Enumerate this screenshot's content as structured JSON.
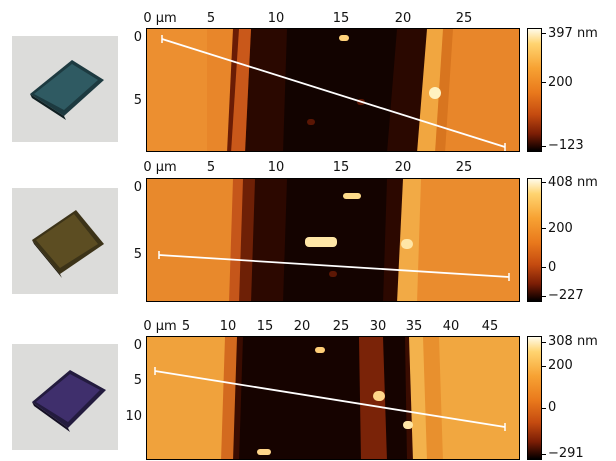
{
  "panels": [
    {
      "x_ticks": [
        "0 μm",
        "5",
        "10",
        "15",
        "20",
        "25"
      ],
      "y_ticks": [
        "0",
        "5"
      ],
      "colorbar": {
        "max": "397 nm",
        "mid": "200",
        "zero": "",
        "min": "−123"
      }
    },
    {
      "x_ticks": [
        "0 μm",
        "5",
        "10",
        "15",
        "20",
        "25"
      ],
      "y_ticks": [
        "0",
        "5"
      ],
      "colorbar": {
        "max": "408 nm",
        "mid": "200",
        "zero": "0",
        "min": "−227"
      }
    },
    {
      "x_ticks": [
        "0 μm",
        "5",
        "10",
        "15",
        "20",
        "25",
        "30",
        "35",
        "40",
        "45"
      ],
      "y_ticks": [
        "0",
        "5",
        "10"
      ],
      "colorbar": {
        "max": "308 nm",
        "mid": "200",
        "zero": "0",
        "min": "−291"
      }
    }
  ],
  "colors": {
    "substrate": "#e8892a",
    "trench_dark": "#160400",
    "edge_bright": "#f6b04a",
    "profile_line": "#ffffff",
    "photo_bg": "#dcdcda"
  }
}
